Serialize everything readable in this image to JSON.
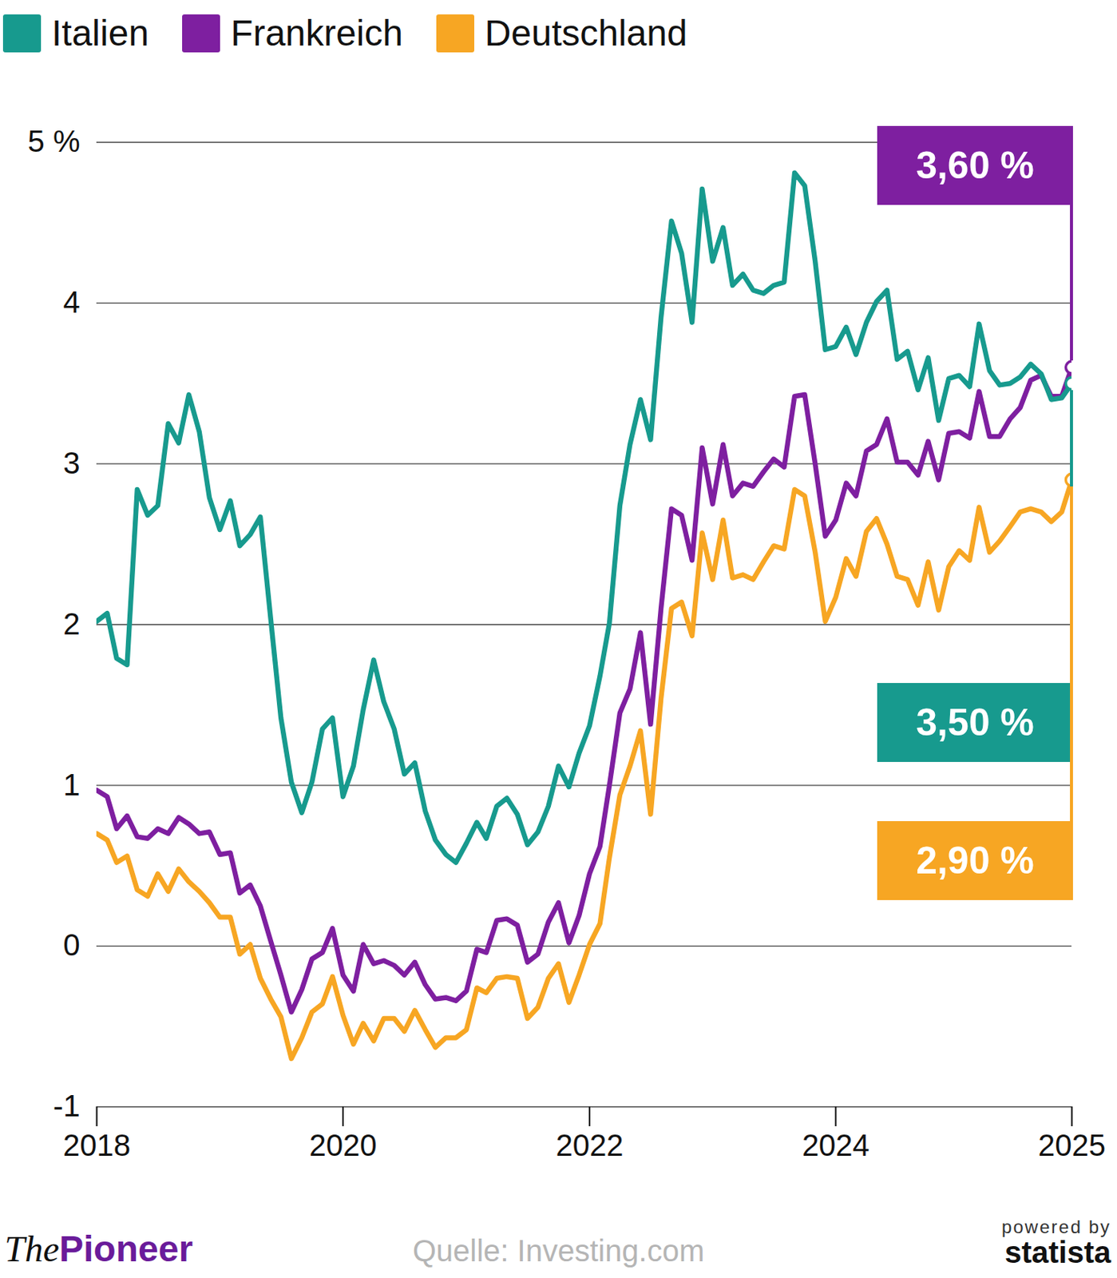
{
  "chart_data": {
    "type": "line",
    "x": [
      "2018-01",
      "2018-02",
      "2018-03",
      "2018-04",
      "2018-05",
      "2018-06",
      "2018-07",
      "2018-08",
      "2018-09",
      "2018-10",
      "2018-11",
      "2018-12",
      "2019-01",
      "2019-02",
      "2019-03",
      "2019-04",
      "2019-05",
      "2019-06",
      "2019-07",
      "2019-08",
      "2019-09",
      "2019-10",
      "2019-11",
      "2019-12",
      "2020-01",
      "2020-02",
      "2020-03",
      "2020-04",
      "2020-05",
      "2020-06",
      "2020-07",
      "2020-08",
      "2020-09",
      "2020-10",
      "2020-11",
      "2020-12",
      "2021-01",
      "2021-02",
      "2021-03",
      "2021-04",
      "2021-05",
      "2021-06",
      "2021-07",
      "2021-08",
      "2021-09",
      "2021-10",
      "2021-11",
      "2021-12",
      "2022-01",
      "2022-02",
      "2022-03",
      "2022-04",
      "2022-05",
      "2022-06",
      "2022-07",
      "2022-08",
      "2022-09",
      "2022-10",
      "2022-11",
      "2022-12",
      "2023-01",
      "2023-02",
      "2023-03",
      "2023-04",
      "2023-05",
      "2023-06",
      "2023-07",
      "2023-08",
      "2023-09",
      "2023-10",
      "2023-11",
      "2023-12",
      "2024-01",
      "2024-02",
      "2024-03",
      "2024-04",
      "2024-05",
      "2024-06",
      "2024-07",
      "2024-08",
      "2024-09",
      "2024-10",
      "2024-11",
      "2024-12",
      "2025-01",
      "2025-02",
      "2025-03",
      "2025-04",
      "2025-05",
      "2025-06",
      "2025-07",
      "2025-08",
      "2025-09",
      "2025-10",
      "2025-11",
      "2025-12"
    ],
    "series": [
      {
        "name": "Deutschland",
        "color": "#f7a623",
        "values": [
          0.7,
          0.66,
          0.52,
          0.56,
          0.35,
          0.31,
          0.45,
          0.34,
          0.48,
          0.4,
          0.34,
          0.27,
          0.18,
          0.18,
          -0.05,
          0.01,
          -0.2,
          -0.33,
          -0.44,
          -0.7,
          -0.57,
          -0.41,
          -0.36,
          -0.19,
          -0.43,
          -0.61,
          -0.48,
          -0.59,
          -0.45,
          -0.45,
          -0.53,
          -0.4,
          -0.52,
          -0.63,
          -0.57,
          -0.57,
          -0.52,
          -0.26,
          -0.29,
          -0.2,
          -0.19,
          -0.2,
          -0.45,
          -0.38,
          -0.2,
          -0.11,
          -0.35,
          -0.18,
          0.01,
          0.14,
          0.55,
          0.94,
          1.12,
          1.34,
          0.82,
          1.54,
          2.1,
          2.14,
          1.93,
          2.57,
          2.28,
          2.65,
          2.29,
          2.31,
          2.28,
          2.39,
          2.49,
          2.47,
          2.84,
          2.8,
          2.45,
          2.02,
          2.17,
          2.41,
          2.3,
          2.58,
          2.66,
          2.5,
          2.3,
          2.28,
          2.12,
          2.39,
          2.09,
          2.36,
          2.46,
          2.4,
          2.73,
          2.45,
          2.52,
          2.61,
          2.7,
          2.72,
          2.7,
          2.64,
          2.7,
          2.9
        ]
      },
      {
        "name": "Frankreich",
        "color": "#7e1fa0",
        "values": [
          0.97,
          0.93,
          0.73,
          0.81,
          0.68,
          0.67,
          0.73,
          0.7,
          0.8,
          0.76,
          0.7,
          0.71,
          0.57,
          0.58,
          0.33,
          0.38,
          0.25,
          0.03,
          -0.18,
          -0.41,
          -0.27,
          -0.08,
          -0.04,
          0.11,
          -0.18,
          -0.28,
          0.01,
          -0.11,
          -0.09,
          -0.12,
          -0.18,
          -0.1,
          -0.24,
          -0.33,
          -0.32,
          -0.34,
          -0.28,
          -0.02,
          -0.04,
          0.16,
          0.17,
          0.13,
          -0.1,
          -0.05,
          0.15,
          0.27,
          0.02,
          0.19,
          0.45,
          0.62,
          1.0,
          1.45,
          1.6,
          1.95,
          1.38,
          2.1,
          2.72,
          2.68,
          2.4,
          3.1,
          2.75,
          3.12,
          2.8,
          2.88,
          2.86,
          2.95,
          3.03,
          2.98,
          3.42,
          3.43,
          3.0,
          2.55,
          2.65,
          2.88,
          2.8,
          3.08,
          3.12,
          3.28,
          3.01,
          3.01,
          2.93,
          3.14,
          2.9,
          3.19,
          3.2,
          3.16,
          3.45,
          3.17,
          3.17,
          3.28,
          3.35,
          3.52,
          3.55,
          3.42,
          3.42,
          3.6
        ]
      },
      {
        "name": "Italien",
        "color": "#179a8e",
        "values": [
          2.02,
          2.07,
          1.79,
          1.75,
          2.84,
          2.68,
          2.74,
          3.25,
          3.13,
          3.43,
          3.2,
          2.79,
          2.59,
          2.77,
          2.49,
          2.56,
          2.67,
          2.03,
          1.42,
          1.02,
          0.83,
          1.02,
          1.35,
          1.42,
          0.93,
          1.12,
          1.47,
          1.78,
          1.52,
          1.35,
          1.07,
          1.14,
          0.84,
          0.66,
          0.57,
          0.52,
          0.64,
          0.77,
          0.67,
          0.87,
          0.92,
          0.82,
          0.63,
          0.71,
          0.87,
          1.12,
          0.99,
          1.2,
          1.37,
          1.68,
          2.01,
          2.74,
          3.12,
          3.4,
          3.15,
          3.91,
          4.51,
          4.31,
          3.88,
          4.71,
          4.26,
          4.47,
          4.11,
          4.18,
          4.08,
          4.06,
          4.11,
          4.13,
          4.81,
          4.73,
          4.26,
          3.71,
          3.73,
          3.85,
          3.68,
          3.88,
          4.01,
          4.08,
          3.65,
          3.7,
          3.46,
          3.66,
          3.27,
          3.53,
          3.55,
          3.48,
          3.87,
          3.58,
          3.49,
          3.5,
          3.54,
          3.62,
          3.56,
          3.4,
          3.41,
          3.5
        ]
      }
    ],
    "legend_order": [
      "Italien",
      "Frankreich",
      "Deutschland"
    ],
    "legend": "top-left",
    "xlim": [
      "2018-01",
      "2025-12"
    ],
    "xticks": [
      {
        "value": "2018-01",
        "label": "2018"
      },
      {
        "value": "2020-01",
        "label": "2020"
      },
      {
        "value": "2022-01",
        "label": "2022"
      },
      {
        "value": "2024-01",
        "label": "2024"
      },
      {
        "value": "2025-12",
        "label": "2025"
      }
    ],
    "ylim": [
      -1,
      5
    ],
    "yticks": [
      -1,
      0,
      1,
      2,
      3,
      4,
      {
        "value": 5,
        "label": "5 %"
      }
    ],
    "grid": true,
    "annotations": [
      {
        "series": "Frankreich",
        "text": "3,60 %"
      },
      {
        "series": "Italien",
        "text": "3,50 %"
      },
      {
        "series": "Deutschland",
        "text": "2,90 %"
      }
    ],
    "source": "Quelle: Investing.com",
    "publisher": "ThePioneer",
    "credit": [
      "powered by",
      "statista"
    ]
  }
}
